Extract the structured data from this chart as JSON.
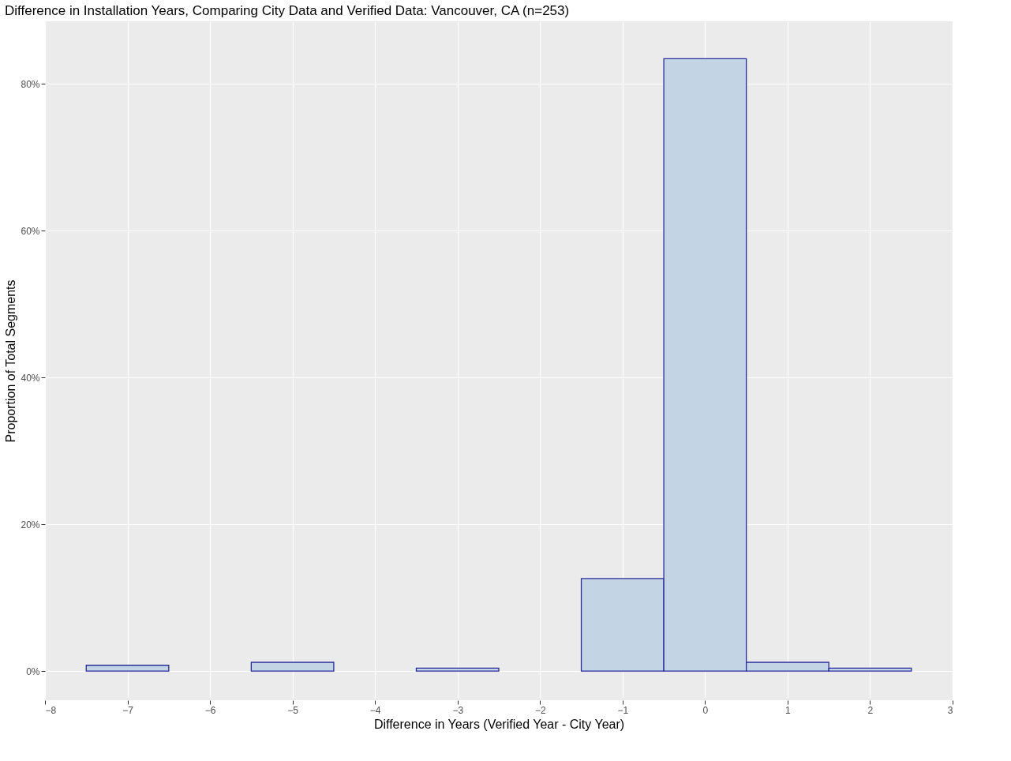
{
  "chart_data": {
    "type": "histogram",
    "title": "Difference in Installation Years, Comparing City Data and Verified Data: Vancouver, CA (n=253)",
    "xlabel": "Difference in Years (Verified Year - City Year)",
    "ylabel": "Proportion of Total Segments",
    "bins": [
      -7.5,
      -6.5,
      -5.5,
      -4.5,
      -3.5,
      -2.5,
      -1.5,
      -0.5,
      0.5,
      1.5,
      2.5
    ],
    "values": [
      0.8,
      null,
      1.2,
      null,
      0.4,
      null,
      12.6,
      83.4,
      1.2,
      0.4
    ],
    "color": "#c3d4e4",
    "xlim": [
      -8,
      3
    ],
    "xticks": [
      -8,
      -7,
      -6,
      -5,
      -4,
      -3,
      -2,
      -1,
      0,
      1,
      2,
      3
    ],
    "ylim": [
      -3.96,
      88.5
    ],
    "yticks": [
      {
        "value": 0,
        "label": "0%"
      },
      {
        "value": 20,
        "label": "20%"
      },
      {
        "value": 40,
        "label": "40%"
      },
      {
        "value": 60,
        "label": "60%"
      },
      {
        "value": 80,
        "label": "80%"
      }
    ],
    "grid": true
  }
}
